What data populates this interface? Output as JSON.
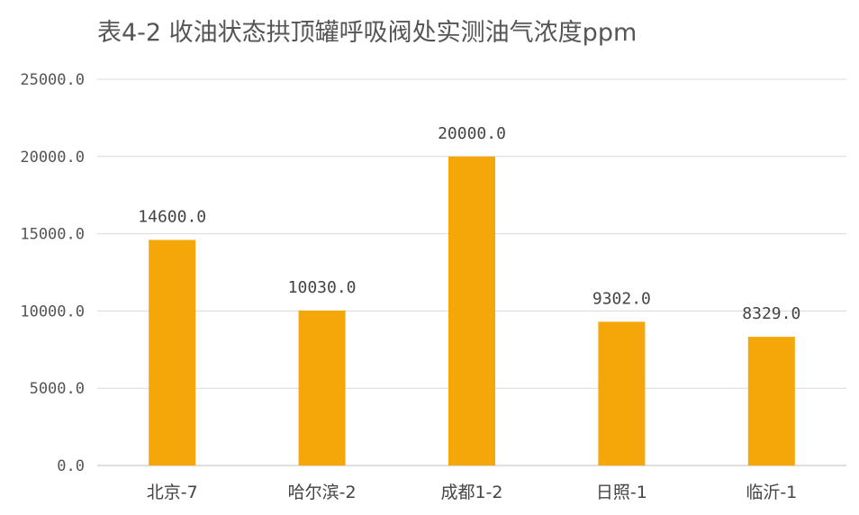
{
  "chart_data": {
    "type": "bar",
    "title": "表4-2 收油状态拱顶罐呼吸阀处实测油气浓度ppm",
    "xlabel": "",
    "ylabel": "",
    "categories": [
      "北京-7",
      "哈尔滨-2",
      "成都1-2",
      "日照-1",
      "临沂-1"
    ],
    "values": [
      14600.0,
      10030.0,
      20000.0,
      9302.0,
      8329.0
    ],
    "data_labels": [
      "14600.0",
      "10030.0",
      "20000.0",
      "9302.0",
      "8329.0"
    ],
    "ylim": [
      0,
      25000
    ],
    "yticks": [
      0,
      5000,
      10000,
      15000,
      20000,
      25000
    ],
    "ytick_labels": [
      "0.0",
      "5000.0",
      "10000.0",
      "15000.0",
      "20000.0",
      "25000.0"
    ],
    "grid": true,
    "bar_color": "#F5A70A",
    "legend": "none"
  }
}
